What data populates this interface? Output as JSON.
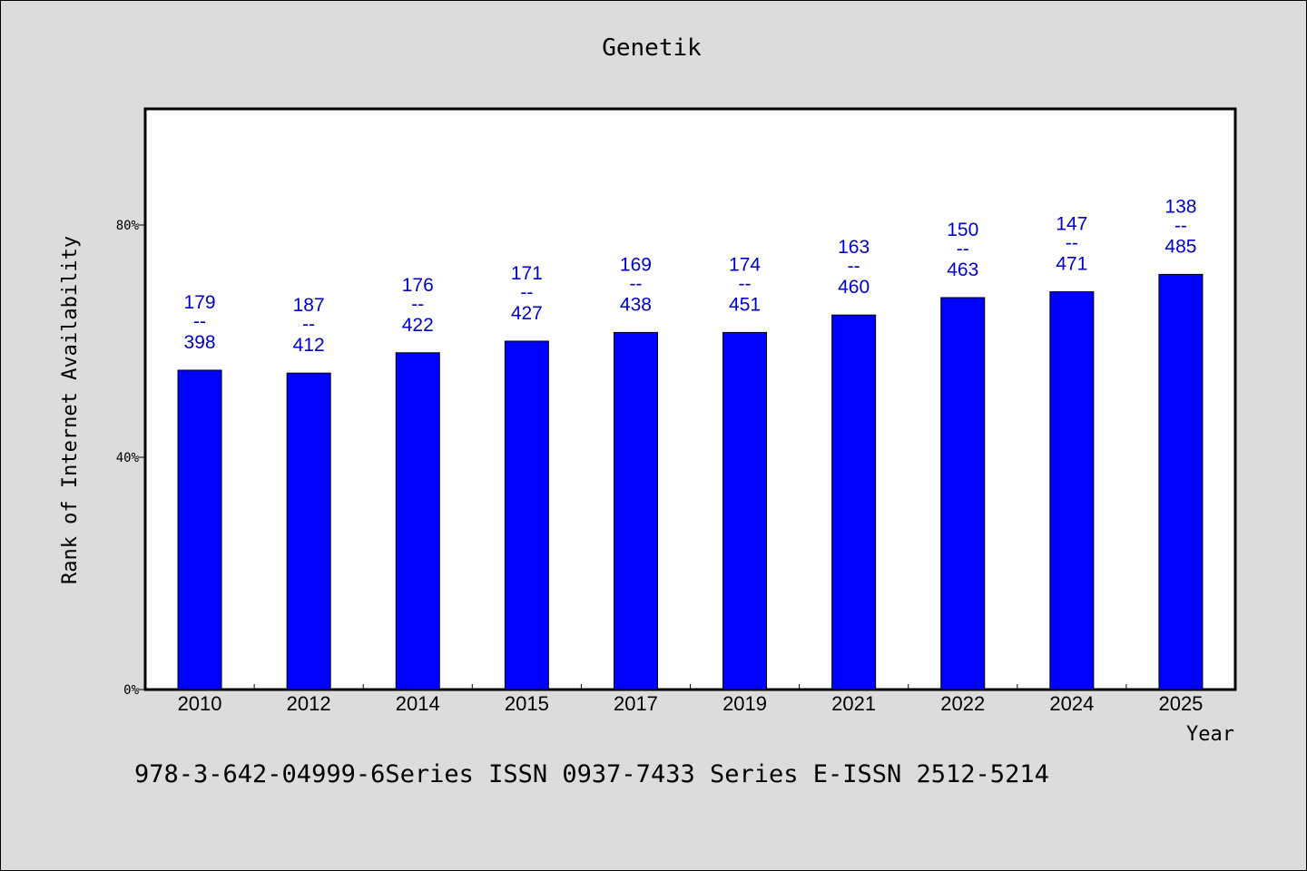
{
  "chart_data": {
    "type": "bar",
    "title": "Genetik",
    "xlabel": "Year",
    "ylabel": "Rank of Internet Availability",
    "categories": [
      "2010",
      "2012",
      "2014",
      "2015",
      "2017",
      "2019",
      "2021",
      "2022",
      "2024",
      "2025"
    ],
    "values": [
      55.0,
      54.5,
      58.0,
      60.0,
      61.5,
      61.5,
      64.5,
      67.5,
      68.5,
      71.5
    ],
    "labels_top": [
      "179",
      "187",
      "176",
      "171",
      "169",
      "174",
      "163",
      "150",
      "147",
      "138"
    ],
    "labels_bottom": [
      "398",
      "412",
      "422",
      "427",
      "438",
      "451",
      "460",
      "463",
      "471",
      "485"
    ],
    "label_separator": "--",
    "yticks": [
      0,
      40,
      80
    ],
    "ytick_labels": [
      "0%",
      "40%",
      "80%"
    ],
    "ylim": [
      0,
      100
    ],
    "grid": false,
    "colors": {
      "bar": "#0000ff",
      "data_label": "#0000cc",
      "background": "#dcdcdc",
      "plot_bg": "#ffffff"
    }
  },
  "footer": "978-3-642-04999-6Series ISSN 0937-7433 Series E-ISSN 2512-5214"
}
